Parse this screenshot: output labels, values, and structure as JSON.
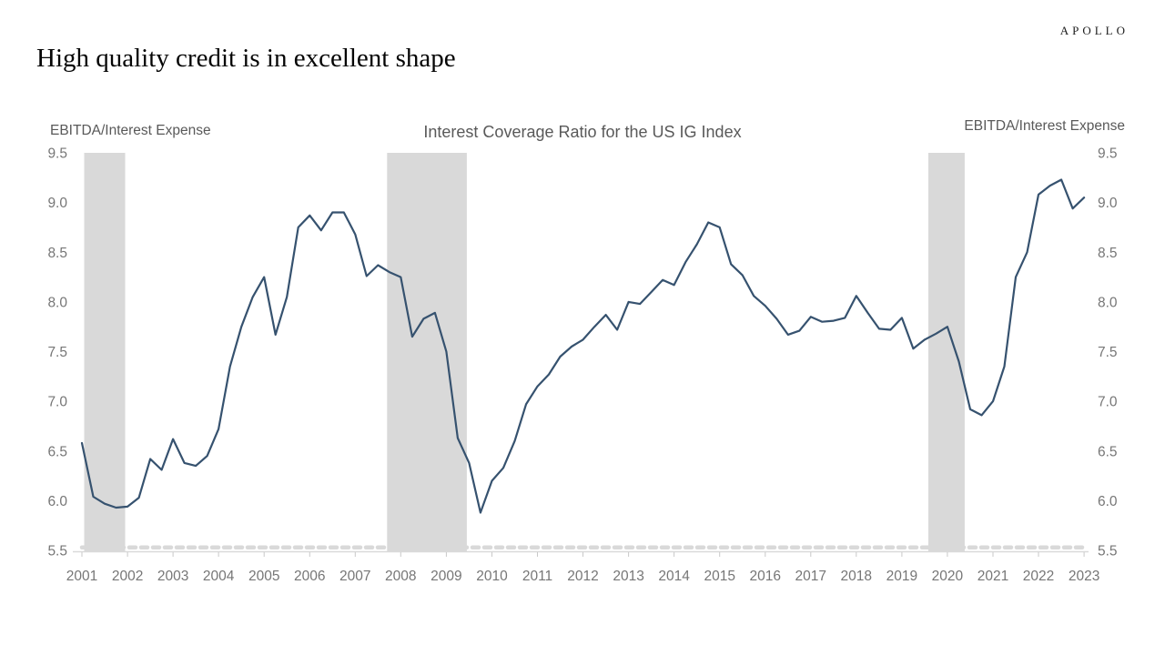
{
  "header": {
    "brand": "APOLLO",
    "title": "High quality credit is in excellent shape"
  },
  "chart": {
    "title": "Interest Coverage Ratio for the US IG Index",
    "left_axis_title": "EBITDA/Interest Expense",
    "right_axis_title": "EBITDA/Interest Expense"
  },
  "chart_data": {
    "type": "line",
    "title": "Interest Coverage Ratio for the US IG Index",
    "ylabel_left": "EBITDA/Interest Expense",
    "ylabel_right": "EBITDA/Interest Expense",
    "frequency": "quarterly",
    "x_start_year": 2001,
    "x_ticks": [
      2001,
      2002,
      2003,
      2004,
      2005,
      2006,
      2007,
      2008,
      2009,
      2010,
      2011,
      2012,
      2013,
      2014,
      2015,
      2016,
      2017,
      2018,
      2019,
      2020,
      2021,
      2022,
      2023
    ],
    "ylim": [
      5.5,
      9.5
    ],
    "y_ticks": [
      9.5,
      9.0,
      8.5,
      8.0,
      7.5,
      7.0,
      6.5,
      6.0,
      5.5
    ],
    "grid": false,
    "legend": "none",
    "series": [
      {
        "name": "Interest coverage ratio (EBITDA/Interest Expense), US IG Index",
        "values": [
          6.58,
          6.04,
          5.97,
          5.93,
          5.94,
          6.03,
          6.42,
          6.31,
          6.62,
          6.38,
          6.35,
          6.45,
          6.72,
          7.35,
          7.75,
          8.05,
          8.25,
          7.67,
          8.05,
          8.75,
          8.87,
          8.72,
          8.9,
          8.9,
          8.68,
          8.26,
          8.37,
          8.3,
          8.25,
          7.65,
          7.83,
          7.89,
          7.5,
          6.63,
          6.38,
          5.88,
          6.2,
          6.33,
          6.6,
          6.97,
          7.15,
          7.27,
          7.45,
          7.55,
          7.62,
          7.75,
          7.87,
          7.72,
          8.0,
          7.98,
          8.1,
          8.22,
          8.17,
          8.4,
          8.58,
          8.8,
          8.75,
          8.38,
          8.27,
          8.06,
          7.96,
          7.83,
          7.67,
          7.71,
          7.85,
          7.8,
          7.81,
          7.84,
          8.06,
          7.89,
          7.73,
          7.72,
          7.84,
          7.53,
          7.62,
          7.68,
          7.75,
          7.4,
          6.92,
          6.86,
          7.0,
          7.35,
          8.25,
          8.5,
          9.08,
          9.17,
          9.23,
          8.94,
          9.05
        ]
      }
    ],
    "recession_bands": [
      {
        "from": 2001.05,
        "to": 2001.95
      },
      {
        "from": 2007.7,
        "to": 2009.45
      },
      {
        "from": 2019.58,
        "to": 2020.38
      }
    ],
    "dashed_baseline_value": 5.53,
    "colors": {
      "line": "#36526f",
      "recession_band": "#d9d9d9",
      "dashed_line": "#d9d9d9",
      "axis_line": "#d9d9d9",
      "tick_mark": "#c9c9c9",
      "tick_label": "#767676",
      "chart_title": "#595959",
      "page_title": "#050505",
      "brand": "#1b1b1b"
    }
  }
}
